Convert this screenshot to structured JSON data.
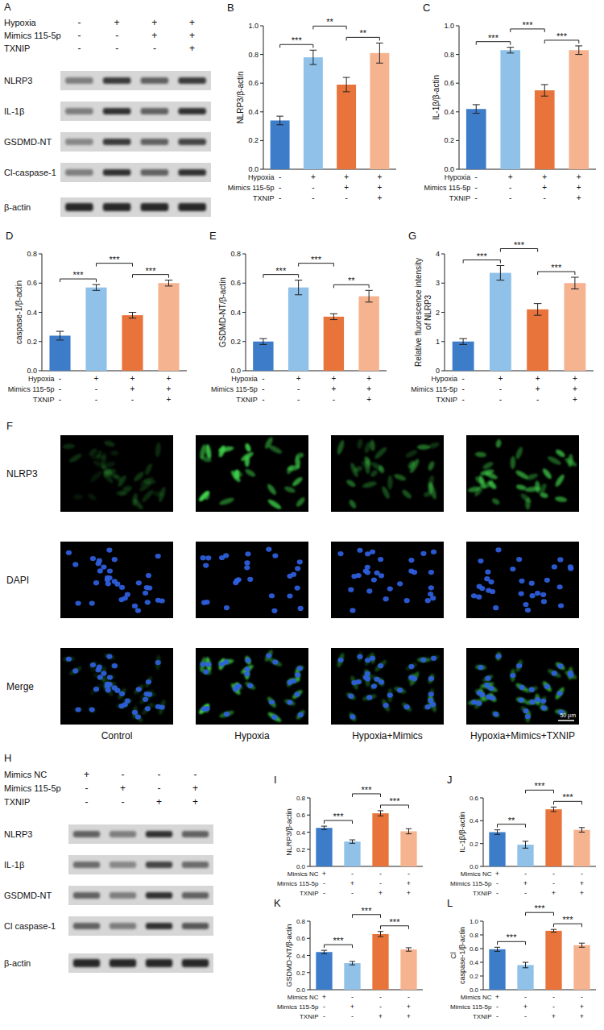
{
  "chart_data": [
    {
      "type": "bar",
      "panel": "B",
      "y_label": "NLRP3/β-actin",
      "categories": [
        null,
        null,
        null,
        null
      ],
      "conditions": [
        {
          "name": "Hypoxia",
          "signs": [
            "-",
            "+",
            "+",
            "+"
          ]
        },
        {
          "name": "Mimics 115-5p",
          "signs": [
            "-",
            "-",
            "+",
            "+"
          ]
        },
        {
          "name": "TXNIP",
          "signs": [
            "-",
            "-",
            "-",
            "+"
          ]
        }
      ],
      "values": [
        0.34,
        0.78,
        0.59,
        0.81
      ],
      "errors": [
        0.03,
        0.05,
        0.05,
        0.07
      ],
      "colors": [
        "#3d7cc9",
        "#8fc1e9",
        "#e8743b",
        "#f6b38f"
      ],
      "ylim": [
        0,
        1
      ],
      "yticks": [
        {
          "value": 0,
          "label": "0.0"
        },
        0.2,
        0.4,
        0.6,
        0.8,
        {
          "value": 1,
          "label": "1.0"
        }
      ],
      "significance": [
        {
          "pair": [
            0,
            1
          ],
          "label": "***"
        },
        {
          "pair": [
            1,
            2
          ],
          "label": "**"
        },
        {
          "pair": [
            2,
            3
          ],
          "label": "**"
        }
      ]
    },
    {
      "type": "bar",
      "panel": "C",
      "y_label": "IL-1β/β-actin",
      "categories": [
        null,
        null,
        null,
        null
      ],
      "conditions": [
        {
          "name": "Hypoxia",
          "signs": [
            "-",
            "+",
            "+",
            "+"
          ]
        },
        {
          "name": "Mimics 115-5p",
          "signs": [
            "-",
            "-",
            "+",
            "+"
          ]
        },
        {
          "name": "TXNIP",
          "signs": [
            "-",
            "-",
            "-",
            "+"
          ]
        }
      ],
      "values": [
        0.42,
        0.83,
        0.55,
        0.83
      ],
      "errors": [
        0.03,
        0.02,
        0.04,
        0.03
      ],
      "colors": [
        "#3d7cc9",
        "#8fc1e9",
        "#e8743b",
        "#f6b38f"
      ],
      "ylim": [
        0,
        1
      ],
      "yticks": [
        {
          "value": 0,
          "label": "0.0"
        },
        0.2,
        0.4,
        0.6,
        0.8,
        {
          "value": 1,
          "label": "1.0"
        }
      ],
      "significance": [
        {
          "pair": [
            0,
            1
          ],
          "label": "***"
        },
        {
          "pair": [
            1,
            2
          ],
          "label": "***"
        },
        {
          "pair": [
            2,
            3
          ],
          "label": "***"
        }
      ]
    },
    {
      "type": "bar",
      "panel": "D",
      "y_label": "caspase-1/β-actin",
      "categories": [
        null,
        null,
        null,
        null
      ],
      "conditions": [
        {
          "name": "Hypoxia",
          "signs": [
            "-",
            "+",
            "+",
            "+"
          ]
        },
        {
          "name": "Mimics 115-5p",
          "signs": [
            "-",
            "-",
            "+",
            "+"
          ]
        },
        {
          "name": "TXNIP",
          "signs": [
            "-",
            "-",
            "-",
            "+"
          ]
        }
      ],
      "values": [
        0.24,
        0.57,
        0.38,
        0.6
      ],
      "errors": [
        0.03,
        0.02,
        0.02,
        0.02
      ],
      "colors": [
        "#3d7cc9",
        "#8fc1e9",
        "#e8743b",
        "#f6b38f"
      ],
      "ylim": [
        0,
        0.8
      ],
      "yticks": [
        {
          "value": 0,
          "label": "0.0"
        },
        0.2,
        0.4,
        0.6,
        0.8
      ],
      "significance": [
        {
          "pair": [
            0,
            1
          ],
          "label": "***"
        },
        {
          "pair": [
            1,
            2
          ],
          "label": "***"
        },
        {
          "pair": [
            2,
            3
          ],
          "label": "***"
        }
      ]
    },
    {
      "type": "bar",
      "panel": "E",
      "y_label": "GSDMD-NT/β-actin",
      "categories": [
        null,
        null,
        null,
        null
      ],
      "conditions": [
        {
          "name": "Hypoxia",
          "signs": [
            "-",
            "+",
            "+",
            "+"
          ]
        },
        {
          "name": "Mimics 115-5p",
          "signs": [
            "-",
            "-",
            "+",
            "+"
          ]
        },
        {
          "name": "TXNIP",
          "signs": [
            "-",
            "-",
            "-",
            "+"
          ]
        }
      ],
      "values": [
        0.2,
        0.57,
        0.37,
        0.51
      ],
      "errors": [
        0.02,
        0.05,
        0.02,
        0.04
      ],
      "colors": [
        "#3d7cc9",
        "#8fc1e9",
        "#e8743b",
        "#f6b38f"
      ],
      "ylim": [
        0,
        0.8
      ],
      "yticks": [
        {
          "value": 0,
          "label": "0.0"
        },
        0.2,
        0.4,
        0.6,
        0.8
      ],
      "significance": [
        {
          "pair": [
            0,
            1
          ],
          "label": "***"
        },
        {
          "pair": [
            1,
            2
          ],
          "label": "***"
        },
        {
          "pair": [
            2,
            3
          ],
          "label": "**"
        }
      ]
    },
    {
      "type": "bar",
      "panel": "G",
      "y_label": "Relative fluorescence intensity of NLRP3",
      "categories": [
        null,
        null,
        null,
        null
      ],
      "conditions": [
        {
          "name": "Hypoxia",
          "signs": [
            "-",
            "+",
            "+",
            "+"
          ]
        },
        {
          "name": "Mimics 115-5p",
          "signs": [
            "-",
            "-",
            "+",
            "+"
          ]
        },
        {
          "name": "TXNIP",
          "signs": [
            "-",
            "-",
            "-",
            "+"
          ]
        }
      ],
      "values": [
        1,
        3.35,
        2.1,
        3
      ],
      "errors": [
        0.1,
        0.25,
        0.2,
        0.2
      ],
      "colors": [
        "#3d7cc9",
        "#8fc1e9",
        "#e8743b",
        "#f6b38f"
      ],
      "ylim": [
        0,
        4
      ],
      "yticks": [
        0,
        1,
        2,
        3,
        4
      ],
      "significance": [
        {
          "pair": [
            0,
            1
          ],
          "label": "***"
        },
        {
          "pair": [
            1,
            2
          ],
          "label": "***"
        },
        {
          "pair": [
            2,
            3
          ],
          "label": "***"
        }
      ]
    },
    {
      "type": "bar",
      "panel": "I",
      "y_label": "NLRP3/β-actin",
      "categories": [
        null,
        null,
        null,
        null
      ],
      "conditions": [
        {
          "name": "Mimics NC",
          "signs": [
            "+",
            "-",
            "-",
            "-"
          ]
        },
        {
          "name": "Mimics 115-5p",
          "signs": [
            "-",
            "+",
            "-",
            "+"
          ]
        },
        {
          "name": "TXNIP",
          "signs": [
            "-",
            "-",
            "+",
            "+"
          ]
        }
      ],
      "values": [
        0.45,
        0.29,
        0.62,
        0.41
      ],
      "errors": [
        0.02,
        0.02,
        0.03,
        0.03
      ],
      "colors": [
        "#3d7cc9",
        "#8fc1e9",
        "#e8743b",
        "#f6b38f"
      ],
      "ylim": [
        0,
        0.8
      ],
      "yticks": [
        {
          "value": 0,
          "label": "0.0"
        },
        0.2,
        0.4,
        0.6,
        0.8
      ],
      "significance": [
        {
          "pair": [
            0,
            1
          ],
          "label": "***"
        },
        {
          "pair": [
            1,
            2
          ],
          "label": "***"
        },
        {
          "pair": [
            2,
            3
          ],
          "label": "***"
        }
      ]
    },
    {
      "type": "bar",
      "panel": "J",
      "y_label": "IL-1β/β-actin",
      "categories": [
        null,
        null,
        null,
        null
      ],
      "conditions": [
        {
          "name": "Mimics NC",
          "signs": [
            "+",
            "-",
            "-",
            "-"
          ]
        },
        {
          "name": "Mimics 115-5p",
          "signs": [
            "-",
            "+",
            "-",
            "+"
          ]
        },
        {
          "name": "TXNIP",
          "signs": [
            "-",
            "-",
            "+",
            "+"
          ]
        }
      ],
      "values": [
        0.3,
        0.19,
        0.5,
        0.32
      ],
      "errors": [
        0.02,
        0.03,
        0.02,
        0.02
      ],
      "colors": [
        "#3d7cc9",
        "#8fc1e9",
        "#e8743b",
        "#f6b38f"
      ],
      "ylim": [
        0,
        0.6
      ],
      "yticks": [
        {
          "value": 0,
          "label": "0.0"
        },
        0.2,
        0.4,
        0.6
      ],
      "significance": [
        {
          "pair": [
            0,
            1
          ],
          "label": "**"
        },
        {
          "pair": [
            1,
            2
          ],
          "label": "***"
        },
        {
          "pair": [
            2,
            3
          ],
          "label": "***"
        }
      ]
    },
    {
      "type": "bar",
      "panel": "K",
      "y_label": "GSDMD-NT/β-actin",
      "categories": [
        null,
        null,
        null,
        null
      ],
      "conditions": [
        {
          "name": "Mimics NC",
          "signs": [
            "+",
            "-",
            "-",
            "-"
          ]
        },
        {
          "name": "Mimics 115-5p",
          "signs": [
            "-",
            "+",
            "-",
            "+"
          ]
        },
        {
          "name": "TXNIP",
          "signs": [
            "-",
            "-",
            "+",
            "+"
          ]
        }
      ],
      "values": [
        0.44,
        0.31,
        0.65,
        0.47
      ],
      "errors": [
        0.02,
        0.02,
        0.03,
        0.02
      ],
      "colors": [
        "#3d7cc9",
        "#8fc1e9",
        "#e8743b",
        "#f6b38f"
      ],
      "ylim": [
        0,
        0.8
      ],
      "yticks": [
        {
          "value": 0,
          "label": "0.0"
        },
        0.2,
        0.4,
        0.6,
        0.8
      ],
      "significance": [
        {
          "pair": [
            0,
            1
          ],
          "label": "***"
        },
        {
          "pair": [
            1,
            2
          ],
          "label": "***"
        },
        {
          "pair": [
            2,
            3
          ],
          "label": "***"
        }
      ]
    },
    {
      "type": "bar",
      "panel": "L",
      "y_label": "Cl caspase-1/β-actin",
      "categories": [
        null,
        null,
        null,
        null
      ],
      "conditions": [
        {
          "name": "Mimics NC",
          "signs": [
            "+",
            "-",
            "-",
            "-"
          ]
        },
        {
          "name": "Mimics 115-5p",
          "signs": [
            "-",
            "+",
            "-",
            "+"
          ]
        },
        {
          "name": "TXNIP",
          "signs": [
            "-",
            "-",
            "+",
            "+"
          ]
        }
      ],
      "values": [
        0.59,
        0.36,
        0.86,
        0.65
      ],
      "errors": [
        0.03,
        0.04,
        0.02,
        0.03
      ],
      "colors": [
        "#3d7cc9",
        "#8fc1e9",
        "#e8743b",
        "#f6b38f"
      ],
      "ylim": [
        0,
        1
      ],
      "yticks": [
        {
          "value": 0,
          "label": "0.0"
        },
        0.2,
        0.4,
        0.6,
        0.8,
        {
          "value": 1,
          "label": "1.0"
        }
      ],
      "significance": [
        {
          "pair": [
            0,
            1
          ],
          "label": "***"
        },
        {
          "pair": [
            1,
            2
          ],
          "label": "***"
        },
        {
          "pair": [
            2,
            3
          ],
          "label": "***"
        }
      ]
    }
  ],
  "blots": [
    {
      "panel": "A",
      "conditions": [
        {
          "name": "Hypoxia",
          "signs": [
            "-",
            "+",
            "+",
            "+"
          ]
        },
        {
          "name": "Mimics 115-5p",
          "signs": [
            "-",
            "-",
            "+",
            "+"
          ]
        },
        {
          "name": "TXNIP",
          "signs": [
            "-",
            "-",
            "-",
            "+"
          ]
        }
      ],
      "rows": [
        "NLRP3",
        "IL-1β",
        "GSDMD-NT",
        "Cl-caspase-1",
        "β-actin"
      ]
    },
    {
      "panel": "H",
      "conditions": [
        {
          "name": "Mimics NC",
          "signs": [
            "+",
            "-",
            "-",
            "-"
          ]
        },
        {
          "name": "Mimics 115-5p",
          "signs": [
            "-",
            "+",
            "-",
            "+"
          ]
        },
        {
          "name": "TXNIP",
          "signs": [
            "-",
            "-",
            "+",
            "+"
          ]
        }
      ],
      "rows": [
        "NLRP3",
        "IL-1β",
        "GSDMD-NT",
        "Cl caspase-1",
        "β-actin"
      ]
    }
  ],
  "fluorescence": {
    "panel": "F",
    "rows": [
      "NLRP3",
      "DAPI",
      "Merge"
    ],
    "columns": [
      "Control",
      "Hypoxia",
      "Hypoxia+Mimics",
      "Hypoxia+Mimics+TXNIP"
    ],
    "scale_bar": "50 μm"
  }
}
